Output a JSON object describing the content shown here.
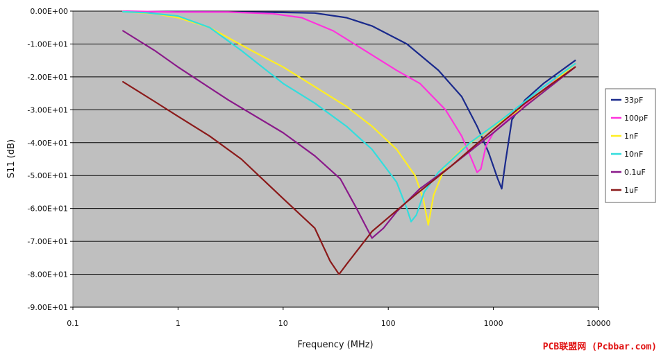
{
  "chart_data": {
    "type": "line",
    "xlabel": "Frequency (MHz)",
    "ylabel": "S11 (dB)",
    "x_scale": "log",
    "xlim": [
      0.1,
      10000
    ],
    "ylim": [
      -90,
      0
    ],
    "x_ticks": [
      {
        "value": 0.1,
        "label": "0.1"
      },
      {
        "value": 1,
        "label": "1"
      },
      {
        "value": 10,
        "label": "10"
      },
      {
        "value": 100,
        "label": "100"
      },
      {
        "value": 1000,
        "label": "1000"
      },
      {
        "value": 10000,
        "label": "10000"
      }
    ],
    "y_ticks": [
      {
        "value": 0,
        "label": "0.00E+00"
      },
      {
        "value": -10,
        "label": "-1.00E+01"
      },
      {
        "value": -20,
        "label": "-2.00E+01"
      },
      {
        "value": -30,
        "label": "-3.00E+01"
      },
      {
        "value": -40,
        "label": "-4.00E+01"
      },
      {
        "value": -50,
        "label": "-5.00E+01"
      },
      {
        "value": -60,
        "label": "-6.00E+01"
      },
      {
        "value": -70,
        "label": "-7.00E+01"
      },
      {
        "value": -80,
        "label": "-8.00E+01"
      },
      {
        "value": -90,
        "label": "-9.00E+01"
      }
    ],
    "grid": "horizontal",
    "legend": "right",
    "series": [
      {
        "name": "33pF",
        "color": "#1a2a8c",
        "points": [
          [
            0.3,
            -0.2
          ],
          [
            1,
            -0.2
          ],
          [
            3,
            -0.3
          ],
          [
            10,
            -0.4
          ],
          [
            20,
            -0.6
          ],
          [
            40,
            -2
          ],
          [
            70,
            -4.5
          ],
          [
            150,
            -10
          ],
          [
            300,
            -18
          ],
          [
            500,
            -26
          ],
          [
            700,
            -35
          ],
          [
            900,
            -43
          ],
          [
            1100,
            -51
          ],
          [
            1200,
            -54
          ],
          [
            1300,
            -46
          ],
          [
            1500,
            -33
          ],
          [
            2000,
            -27
          ],
          [
            3000,
            -22
          ],
          [
            6000,
            -15
          ]
        ]
      },
      {
        "name": "100pF",
        "color": "#ff33dd",
        "points": [
          [
            0.3,
            0
          ],
          [
            1,
            -0.3
          ],
          [
            3,
            -0.3
          ],
          [
            8,
            -0.8
          ],
          [
            15,
            -2
          ],
          [
            30,
            -6
          ],
          [
            60,
            -12
          ],
          [
            120,
            -18
          ],
          [
            200,
            -22
          ],
          [
            350,
            -30
          ],
          [
            500,
            -38
          ],
          [
            620,
            -45
          ],
          [
            700,
            -49
          ],
          [
            760,
            -48
          ],
          [
            850,
            -41
          ],
          [
            1000,
            -37
          ],
          [
            1500,
            -32
          ],
          [
            3000,
            -24
          ],
          [
            6000,
            -16
          ]
        ]
      },
      {
        "name": "1nF",
        "color": "#ffee22",
        "points": [
          [
            0.3,
            -0.2
          ],
          [
            0.6,
            -0.8
          ],
          [
            1,
            -2
          ],
          [
            2,
            -5
          ],
          [
            5,
            -12
          ],
          [
            10,
            -17
          ],
          [
            20,
            -23
          ],
          [
            40,
            -29
          ],
          [
            70,
            -35
          ],
          [
            120,
            -42
          ],
          [
            180,
            -50
          ],
          [
            215,
            -57
          ],
          [
            240,
            -65
          ],
          [
            270,
            -56
          ],
          [
            350,
            -47
          ],
          [
            500,
            -42
          ],
          [
            1000,
            -35
          ],
          [
            2000,
            -29
          ],
          [
            6000,
            -16
          ]
        ]
      },
      {
        "name": "10nF",
        "color": "#33dddd",
        "points": [
          [
            0.3,
            -0.2
          ],
          [
            0.5,
            -0.5
          ],
          [
            1,
            -1.5
          ],
          [
            2,
            -5
          ],
          [
            4,
            -12
          ],
          [
            10,
            -22
          ],
          [
            20,
            -28
          ],
          [
            40,
            -35
          ],
          [
            70,
            -42
          ],
          [
            120,
            -52
          ],
          [
            150,
            -60
          ],
          [
            165,
            -64
          ],
          [
            185,
            -62
          ],
          [
            220,
            -55
          ],
          [
            300,
            -49
          ],
          [
            600,
            -40
          ],
          [
            1200,
            -33
          ],
          [
            3000,
            -23
          ],
          [
            6000,
            -16
          ]
        ]
      },
      {
        "name": "0.1uF",
        "color": "#8a1a8a",
        "points": [
          [
            0.3,
            -6
          ],
          [
            0.6,
            -12
          ],
          [
            1,
            -17
          ],
          [
            3,
            -27
          ],
          [
            10,
            -37
          ],
          [
            20,
            -44
          ],
          [
            35,
            -51
          ],
          [
            50,
            -60
          ],
          [
            70,
            -69
          ],
          [
            90,
            -66
          ],
          [
            120,
            -61
          ],
          [
            200,
            -54
          ],
          [
            400,
            -47
          ],
          [
            1000,
            -37
          ],
          [
            2000,
            -29
          ],
          [
            6000,
            -17
          ]
        ]
      },
      {
        "name": "1uF",
        "color": "#8b1a1a",
        "points": [
          [
            0.3,
            -21.5
          ],
          [
            0.6,
            -27.5
          ],
          [
            1,
            -32
          ],
          [
            2,
            -38
          ],
          [
            4,
            -45
          ],
          [
            10,
            -57
          ],
          [
            20,
            -66
          ],
          [
            28,
            -76
          ],
          [
            34,
            -80
          ],
          [
            40,
            -77
          ],
          [
            70,
            -67
          ],
          [
            150,
            -58
          ],
          [
            400,
            -47
          ],
          [
            1000,
            -36
          ],
          [
            2000,
            -28
          ],
          [
            6000,
            -17
          ]
        ]
      }
    ]
  },
  "watermark": "PCB联盟网 (Pcbbar.com)"
}
